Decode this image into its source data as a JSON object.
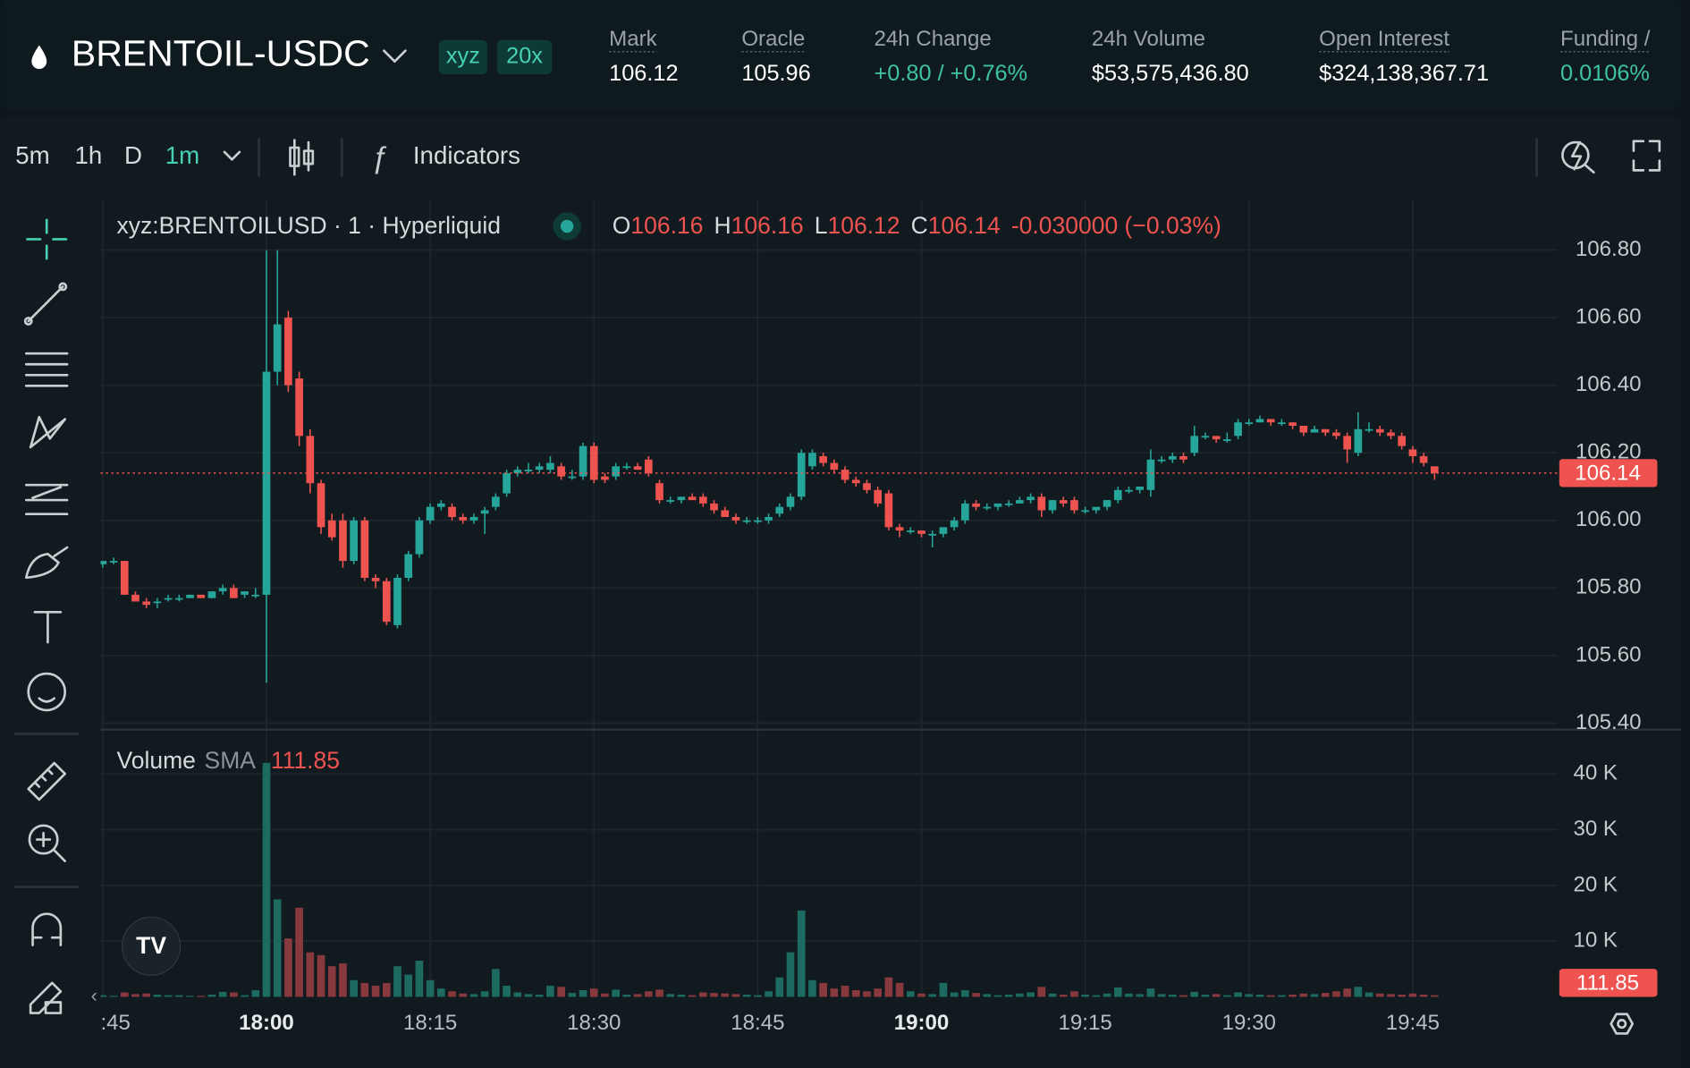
{
  "header": {
    "symbol": "BRENTOIL-USDC",
    "badges": [
      "xyz",
      "20x"
    ],
    "stats": [
      {
        "label": "Mark",
        "value": 106.12
      },
      {
        "label": "Oracle",
        "value": 105.96
      },
      {
        "label": "24h Change",
        "value": "+0.80 / +0.76%"
      },
      {
        "label": "24h Volume",
        "value": "$53,575,436.80"
      },
      {
        "label": "Open Interest",
        "value": "$324,138,367.71"
      },
      {
        "label": "Funding /",
        "value": "0.0106%"
      }
    ]
  },
  "toolbar": {
    "intervals": [
      "5m",
      "1h",
      "D",
      "1m"
    ],
    "indicators": "Indicators"
  },
  "chart_data": {
    "type": "candlestick",
    "title": "xyz:BRENTOILUSD · 1 · Hyperliquid",
    "ohlc_letters": [
      "O",
      "H",
      "L",
      "C"
    ],
    "change_label": "-0.030000 (−0.03%)",
    "colors": {
      "up": "#26a69a",
      "down": "#ef5350",
      "volume_up": "#1d6a60",
      "volume_down": "#87393d"
    },
    "grid": true,
    "x": [
      "17:45",
      "17:46",
      "17:47",
      "17:48",
      "17:49",
      "17:50",
      "17:51",
      "17:52",
      "17:53",
      "17:54",
      "17:55",
      "17:56",
      "17:57",
      "17:58",
      "17:59",
      "18:00",
      "18:01",
      "18:02",
      "18:03",
      "18:04",
      "18:05",
      "18:06",
      "18:07",
      "18:08",
      "18:09",
      "18:10",
      "18:11",
      "18:12",
      "18:13",
      "18:14",
      "18:15",
      "18:16",
      "18:17",
      "18:18",
      "18:19",
      "18:20",
      "18:21",
      "18:22",
      "18:23",
      "18:24",
      "18:25",
      "18:26",
      "18:27",
      "18:28",
      "18:29",
      "18:30",
      "18:31",
      "18:32",
      "18:33",
      "18:34",
      "18:35",
      "18:36",
      "18:37",
      "18:38",
      "18:39",
      "18:40",
      "18:41",
      "18:42",
      "18:43",
      "18:44",
      "18:45",
      "18:46",
      "18:47",
      "18:48",
      "18:49",
      "18:50",
      "18:51",
      "18:52",
      "18:53",
      "18:54",
      "18:55",
      "18:56",
      "18:57",
      "18:58",
      "18:59",
      "19:00",
      "19:01",
      "19:02",
      "19:03",
      "19:04",
      "19:05",
      "19:06",
      "19:07",
      "19:08",
      "19:09",
      "19:10",
      "19:11",
      "19:12",
      "19:13",
      "19:14",
      "19:15",
      "19:16",
      "19:17",
      "19:18",
      "19:19",
      "19:20",
      "19:21",
      "19:22",
      "19:23",
      "19:24",
      "19:25",
      "19:26",
      "19:27",
      "19:28",
      "19:29",
      "19:30",
      "19:31",
      "19:32",
      "19:33",
      "19:34",
      "19:35",
      "19:36",
      "19:37",
      "19:38",
      "19:39",
      "19:40",
      "19:41",
      "19:42",
      "19:43",
      "19:44",
      "19:45",
      "19:46",
      "19:47"
    ],
    "open": [
      105.87,
      105.88,
      105.88,
      105.78,
      105.76,
      105.76,
      105.77,
      105.77,
      105.77,
      105.78,
      105.77,
      105.79,
      105.8,
      105.78,
      105.78,
      105.78,
      106.44,
      106.6,
      106.42,
      106.25,
      106.11,
      106.0,
      106.0,
      105.88,
      106.0,
      105.83,
      105.82,
      105.69,
      105.83,
      105.9,
      106.0,
      106.04,
      106.04,
      106.01,
      106.0,
      106.02,
      106.04,
      106.08,
      106.14,
      106.15,
      106.15,
      106.15,
      106.16,
      106.13,
      106.13,
      106.22,
      106.13,
      106.13,
      106.16,
      106.16,
      106.18,
      106.11,
      106.06,
      106.06,
      106.07,
      106.07,
      106.05,
      106.03,
      106.01,
      106.0,
      106.0,
      106.0,
      106.02,
      106.04,
      106.07,
      106.16,
      106.19,
      106.17,
      106.15,
      106.12,
      106.11,
      106.09,
      106.08,
      105.98,
      105.97,
      105.97,
      105.96,
      105.96,
      105.98,
      106.0,
      106.05,
      106.04,
      106.04,
      106.05,
      106.05,
      106.06,
      106.07,
      106.03,
      106.06,
      106.06,
      106.03,
      106.03,
      106.04,
      106.06,
      106.09,
      106.09,
      106.09,
      106.18,
      106.18,
      106.19,
      106.2,
      106.25,
      106.25,
      106.24,
      106.25,
      106.29,
      106.29,
      106.3,
      106.29,
      106.29,
      106.28,
      106.26,
      106.27,
      106.26,
      106.25,
      106.2,
      106.27,
      106.27,
      106.26,
      106.25,
      106.21,
      106.19,
      106.16
    ],
    "high": [
      105.88,
      105.89,
      105.88,
      105.79,
      105.77,
      105.77,
      105.78,
      105.78,
      105.78,
      105.78,
      105.79,
      105.81,
      105.81,
      105.79,
      105.8,
      106.8,
      106.8,
      106.62,
      106.44,
      106.27,
      106.12,
      106.02,
      106.02,
      106.01,
      106.01,
      105.84,
      105.83,
      105.84,
      105.91,
      106.01,
      106.05,
      106.06,
      106.05,
      106.02,
      106.02,
      106.04,
      106.08,
      106.15,
      106.16,
      106.17,
      106.17,
      106.19,
      106.17,
      106.15,
      106.23,
      106.23,
      106.14,
      106.17,
      106.17,
      106.17,
      106.19,
      106.12,
      106.07,
      106.07,
      106.08,
      106.08,
      106.06,
      106.04,
      106.02,
      106.01,
      106.01,
      106.02,
      106.05,
      106.08,
      106.21,
      106.21,
      106.2,
      106.18,
      106.16,
      106.13,
      106.12,
      106.1,
      106.09,
      105.99,
      105.98,
      105.97,
      105.97,
      105.98,
      106.01,
      106.06,
      106.06,
      106.05,
      106.05,
      106.06,
      106.07,
      106.08,
      106.08,
      106.06,
      106.07,
      106.07,
      106.04,
      106.04,
      106.06,
      106.1,
      106.1,
      106.1,
      106.21,
      106.19,
      106.2,
      106.2,
      106.28,
      106.26,
      106.25,
      106.26,
      106.3,
      106.3,
      106.31,
      106.3,
      106.3,
      106.29,
      106.28,
      106.28,
      106.27,
      106.27,
      106.26,
      106.32,
      106.29,
      106.28,
      106.27,
      106.26,
      106.22,
      106.2,
      106.16
    ],
    "low": [
      105.86,
      105.87,
      105.78,
      105.76,
      105.74,
      105.74,
      105.76,
      105.76,
      105.77,
      105.77,
      105.77,
      105.78,
      105.77,
      105.77,
      105.77,
      105.52,
      106.4,
      106.38,
      106.22,
      106.08,
      105.96,
      105.94,
      105.86,
      105.87,
      105.82,
      105.8,
      105.69,
      105.68,
      105.82,
      105.89,
      105.99,
      106.03,
      106.0,
      105.99,
      105.99,
      105.96,
      106.03,
      106.07,
      106.13,
      106.14,
      106.14,
      106.14,
      106.12,
      106.12,
      106.12,
      106.11,
      106.11,
      106.12,
      106.15,
      106.15,
      106.13,
      106.05,
      106.05,
      106.05,
      106.06,
      106.04,
      106.02,
      106.01,
      105.99,
      105.99,
      105.99,
      105.99,
      106.01,
      106.03,
      106.06,
      106.15,
      106.16,
      106.14,
      106.11,
      106.1,
      106.08,
      106.04,
      105.97,
      105.95,
      105.96,
      105.95,
      105.92,
      105.95,
      105.97,
      105.99,
      106.03,
      106.03,
      106.03,
      106.04,
      106.05,
      106.05,
      106.01,
      106.02,
      106.04,
      106.02,
      106.02,
      106.02,
      106.03,
      106.05,
      106.08,
      106.08,
      106.07,
      106.17,
      106.17,
      106.17,
      106.19,
      106.24,
      106.23,
      106.23,
      106.24,
      106.28,
      106.29,
      106.28,
      106.28,
      106.27,
      106.25,
      106.26,
      106.25,
      106.24,
      106.17,
      106.19,
      106.26,
      106.25,
      106.24,
      106.21,
      106.17,
      106.16,
      106.12
    ],
    "close": [
      105.88,
      105.88,
      105.78,
      105.76,
      105.75,
      105.76,
      105.77,
      105.77,
      105.78,
      105.77,
      105.79,
      105.8,
      105.77,
      105.79,
      105.78,
      106.44,
      106.58,
      106.4,
      106.25,
      106.11,
      105.98,
      105.95,
      105.88,
      106.0,
      105.83,
      105.82,
      105.7,
      105.83,
      105.9,
      106.0,
      106.04,
      106.05,
      106.01,
      106.0,
      106.01,
      106.03,
      106.07,
      106.14,
      106.15,
      106.15,
      106.16,
      106.17,
      106.13,
      106.13,
      106.22,
      106.12,
      106.12,
      106.16,
      106.16,
      106.15,
      106.14,
      106.06,
      106.06,
      106.07,
      106.06,
      106.05,
      106.03,
      106.01,
      106.0,
      106.0,
      106.0,
      106.01,
      106.04,
      106.07,
      106.2,
      106.2,
      106.17,
      106.15,
      106.12,
      106.11,
      106.09,
      106.05,
      105.98,
      105.97,
      105.97,
      105.96,
      105.96,
      105.98,
      106.0,
      106.05,
      106.04,
      106.04,
      106.05,
      106.05,
      106.06,
      106.07,
      106.03,
      106.06,
      106.05,
      106.03,
      106.03,
      106.04,
      106.06,
      106.09,
      106.09,
      106.1,
      106.18,
      106.18,
      106.19,
      106.18,
      106.25,
      106.25,
      106.24,
      106.24,
      106.29,
      106.29,
      106.3,
      106.29,
      106.29,
      106.28,
      106.26,
      106.27,
      106.26,
      106.25,
      106.21,
      106.27,
      106.27,
      106.26,
      106.25,
      106.22,
      106.19,
      106.17,
      106.14
    ],
    "volume": [
      300,
      200,
      800,
      500,
      600,
      400,
      300,
      300,
      200,
      200,
      400,
      900,
      800,
      300,
      1200,
      42000,
      17500,
      10500,
      16000,
      8000,
      7500,
      5500,
      6000,
      3000,
      2500,
      2000,
      2500,
      5500,
      4000,
      6500,
      3000,
      1500,
      1000,
      600,
      500,
      1000,
      5000,
      2000,
      800,
      500,
      400,
      2000,
      1800,
      700,
      1200,
      1500,
      600,
      1300,
      400,
      500,
      1000,
      1300,
      500,
      400,
      300,
      800,
      700,
      600,
      500,
      400,
      300,
      1000,
      3500,
      8000,
      15500,
      3000,
      2500,
      1500,
      2000,
      1200,
      1000,
      1500,
      3500,
      2500,
      1000,
      600,
      500,
      2500,
      800,
      1200,
      700,
      500,
      300,
      400,
      600,
      800,
      1800,
      600,
      400,
      1000,
      400,
      300,
      600,
      1700,
      600,
      500,
      1500,
      500,
      400,
      300,
      900,
      400,
      500,
      300,
      800,
      500,
      400,
      300,
      300,
      400,
      600,
      500,
      700,
      1000,
      1500,
      1800,
      800,
      600,
      500,
      400,
      600,
      400,
      300
    ],
    "ylim": [
      105.4,
      106.95
    ],
    "yticks": [
      {
        "value": 105.4,
        "label": "105.40"
      },
      {
        "value": 105.6,
        "label": "105.60"
      },
      {
        "value": 105.8,
        "label": "105.80"
      },
      {
        "value": 106,
        "label": "106.00"
      },
      {
        "value": 106.2,
        "label": "106.20"
      },
      {
        "value": 106.4,
        "label": "106.40"
      },
      {
        "value": 106.6,
        "label": "106.60"
      },
      {
        "value": 106.8,
        "label": "106.80"
      }
    ],
    "xticks": [
      {
        "value": "17:45",
        "label": ":45"
      },
      "18:00",
      "18:15",
      "18:30",
      "18:45",
      "19:00",
      "19:15",
      "19:30",
      "19:45"
    ],
    "volume_label": "Volume",
    "volume_sma_label": "SMA",
    "volume_sma": 111.85,
    "volume_ylim": [
      0,
      47000
    ],
    "volume_yticks": [
      {
        "value": 10000,
        "label": "10 K"
      },
      {
        "value": 20000,
        "label": "20 K"
      },
      {
        "value": 30000,
        "label": "30 K"
      },
      {
        "value": 40000,
        "label": "40 K"
      }
    ]
  }
}
